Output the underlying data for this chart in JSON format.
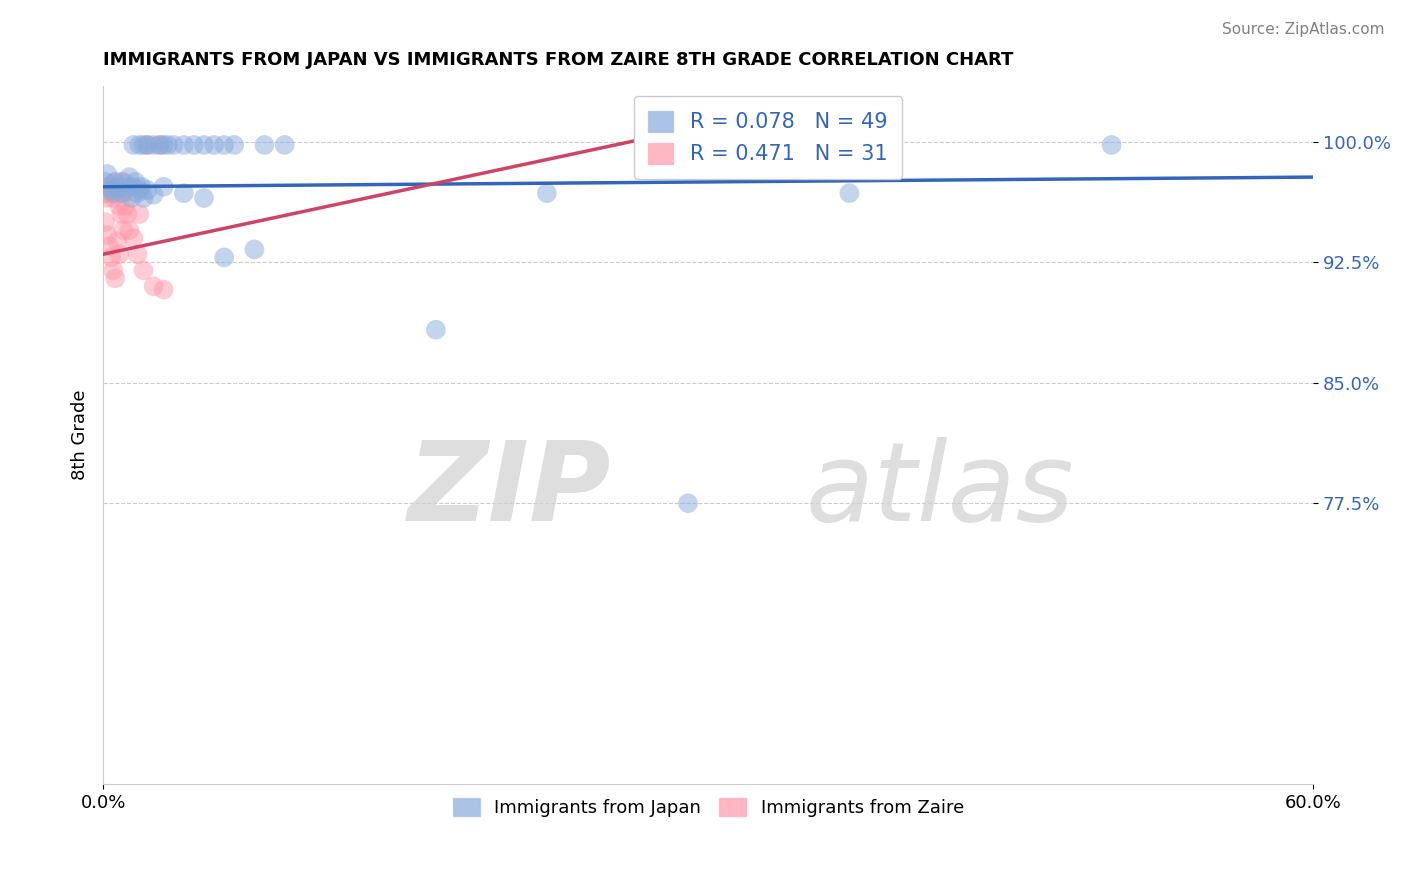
{
  "title": "IMMIGRANTS FROM JAPAN VS IMMIGRANTS FROM ZAIRE 8TH GRADE CORRELATION CHART",
  "source": "Source: ZipAtlas.com",
  "ylabel": "8th Grade",
  "xlim": [
    0.0,
    0.6
  ],
  "ylim": [
    0.6,
    1.035
  ],
  "xticks": [
    0.0,
    0.6
  ],
  "xtick_labels": [
    "0.0%",
    "60.0%"
  ],
  "ytick_vals": [
    0.775,
    0.85,
    0.925,
    1.0
  ],
  "ytick_labels": [
    "77.5%",
    "85.0%",
    "92.5%",
    "100.0%"
  ],
  "japan_color": "#88AADD",
  "zaire_color": "#FF99AA",
  "japan_R": 0.078,
  "japan_N": 49,
  "zaire_R": 0.471,
  "zaire_N": 31,
  "japan_points": [
    [
      0.001,
      0.975
    ],
    [
      0.002,
      0.98
    ],
    [
      0.003,
      0.972
    ],
    [
      0.004,
      0.97
    ],
    [
      0.005,
      0.968
    ],
    [
      0.006,
      0.975
    ],
    [
      0.007,
      0.972
    ],
    [
      0.008,
      0.971
    ],
    [
      0.009,
      0.968
    ],
    [
      0.01,
      0.975
    ],
    [
      0.011,
      0.97
    ],
    [
      0.012,
      0.972
    ],
    [
      0.013,
      0.978
    ],
    [
      0.014,
      0.965
    ],
    [
      0.015,
      0.972
    ],
    [
      0.016,
      0.975
    ],
    [
      0.017,
      0.968
    ],
    [
      0.018,
      0.97
    ],
    [
      0.019,
      0.972
    ],
    [
      0.02,
      0.965
    ],
    [
      0.022,
      0.97
    ],
    [
      0.025,
      0.967
    ],
    [
      0.015,
      0.998
    ],
    [
      0.018,
      0.998
    ],
    [
      0.02,
      0.998
    ],
    [
      0.022,
      0.998
    ],
    [
      0.025,
      0.998
    ],
    [
      0.028,
      0.998
    ],
    [
      0.03,
      0.998
    ],
    [
      0.032,
      0.998
    ],
    [
      0.035,
      0.998
    ],
    [
      0.04,
      0.998
    ],
    [
      0.045,
      0.998
    ],
    [
      0.05,
      0.998
    ],
    [
      0.055,
      0.998
    ],
    [
      0.06,
      0.998
    ],
    [
      0.065,
      0.998
    ],
    [
      0.08,
      0.998
    ],
    [
      0.09,
      0.998
    ],
    [
      0.03,
      0.972
    ],
    [
      0.04,
      0.968
    ],
    [
      0.05,
      0.965
    ],
    [
      0.06,
      0.928
    ],
    [
      0.075,
      0.933
    ],
    [
      0.165,
      0.883
    ],
    [
      0.22,
      0.968
    ],
    [
      0.29,
      0.775
    ],
    [
      0.37,
      0.968
    ],
    [
      0.5,
      0.998
    ]
  ],
  "zaire_points": [
    [
      0.001,
      0.968
    ],
    [
      0.002,
      0.965
    ],
    [
      0.003,
      0.972
    ],
    [
      0.004,
      0.968
    ],
    [
      0.005,
      0.965
    ],
    [
      0.006,
      0.975
    ],
    [
      0.007,
      0.97
    ],
    [
      0.008,
      0.96
    ],
    [
      0.009,
      0.955
    ],
    [
      0.01,
      0.968
    ],
    [
      0.011,
      0.96
    ],
    [
      0.012,
      0.955
    ],
    [
      0.001,
      0.95
    ],
    [
      0.002,
      0.942
    ],
    [
      0.003,
      0.935
    ],
    [
      0.004,
      0.928
    ],
    [
      0.005,
      0.92
    ],
    [
      0.006,
      0.915
    ],
    [
      0.007,
      0.938
    ],
    [
      0.008,
      0.93
    ],
    [
      0.009,
      0.975
    ],
    [
      0.01,
      0.945
    ],
    [
      0.013,
      0.945
    ],
    [
      0.015,
      0.94
    ],
    [
      0.017,
      0.93
    ],
    [
      0.02,
      0.92
    ],
    [
      0.025,
      0.91
    ],
    [
      0.03,
      0.908
    ],
    [
      0.018,
      0.955
    ],
    [
      0.022,
      0.998
    ],
    [
      0.028,
      0.998
    ]
  ],
  "watermark_zip": "ZIP",
  "watermark_atlas": "atlas",
  "japan_trend": [
    0.0,
    0.6,
    0.972,
    0.978
  ],
  "zaire_trend": [
    0.0,
    0.28,
    0.93,
    1.005
  ]
}
